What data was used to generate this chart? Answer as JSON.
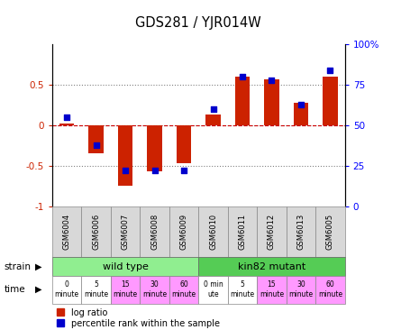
{
  "title": "GDS281 / YJR014W",
  "samples": [
    "GSM6004",
    "GSM6006",
    "GSM6007",
    "GSM6008",
    "GSM6009",
    "GSM6010",
    "GSM6011",
    "GSM6012",
    "GSM6013",
    "GSM6005"
  ],
  "log_ratio": [
    0.02,
    -0.35,
    -0.75,
    -0.57,
    -0.47,
    0.13,
    0.6,
    0.57,
    0.28,
    0.6
  ],
  "percentile": [
    55,
    38,
    22,
    22,
    22,
    60,
    80,
    78,
    63,
    84
  ],
  "strain_labels": [
    "wild type",
    "kin82 mutant"
  ],
  "strain_colors": [
    "#90ee90",
    "#55cc55"
  ],
  "time_labels": [
    "0\nminute",
    "5\nminute",
    "15\nminute",
    "30\nminute",
    "60\nminute",
    "0 min\nute",
    "5\nminute",
    "15\nminute",
    "30\nminute",
    "60\nminute"
  ],
  "time_colors": [
    "#ffffff",
    "#ffffff",
    "#ff99ff",
    "#ff99ff",
    "#ff99ff",
    "#ffffff",
    "#ffffff",
    "#ff99ff",
    "#ff99ff",
    "#ff99ff"
  ],
  "bar_color": "#cc2200",
  "dot_color": "#0000cc",
  "legend_log": "log ratio",
  "legend_pct": "percentile rank within the sample"
}
